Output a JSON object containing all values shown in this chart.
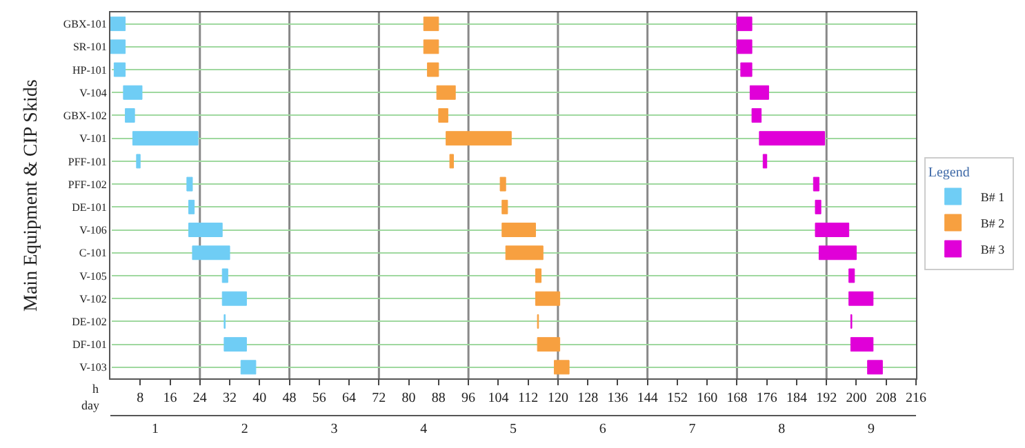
{
  "chart_data": {
    "type": "bar",
    "orientation": "horizontal",
    "categories": [
      "GBX-101",
      "SR-101",
      "HP-101",
      "V-104",
      "GBX-102",
      "V-101",
      "PFF-101",
      "PFF-102",
      "DE-101",
      "V-106",
      "C-101",
      "V-105",
      "V-102",
      "DE-102",
      "DF-101",
      "V-103"
    ],
    "series": [
      {
        "name": "B# 1",
        "color": "#6fcdf5",
        "base": [
          0,
          0,
          1,
          3.5,
          4,
          6,
          7,
          20.5,
          21,
          21,
          22,
          30,
          30,
          30.5,
          30.5,
          35
        ],
        "values": [
          4,
          4,
          3,
          5,
          2.5,
          17.5,
          1,
          1.5,
          1.5,
          9,
          10,
          1.5,
          6.5,
          0.3,
          6,
          4
        ]
      },
      {
        "name": "B# 2",
        "color": "#f7a040",
        "base": [
          84,
          84,
          85,
          87.5,
          88,
          90,
          91,
          104.5,
          105,
          105,
          106,
          114,
          114,
          114.5,
          114.5,
          119
        ],
        "values": [
          4,
          4,
          3,
          5,
          2.5,
          17.5,
          1,
          1.5,
          1.5,
          9,
          10,
          1.5,
          6.5,
          0.3,
          6,
          4
        ]
      },
      {
        "name": "B# 3",
        "color": "#e000d8",
        "base": [
          168,
          168,
          169,
          171.5,
          172,
          174,
          175,
          188.5,
          189,
          189,
          190,
          198,
          198,
          198.5,
          198.5,
          203
        ],
        "values": [
          4,
          4,
          3,
          5,
          2.5,
          17.5,
          1,
          1.5,
          1.5,
          9,
          10,
          1.5,
          6.5,
          0.3,
          6,
          4
        ]
      }
    ],
    "ylabel": "Main Equipment & CIP Skids",
    "xlabel": "h",
    "x2label": "day",
    "xlim": [
      0,
      216
    ],
    "xticks": [
      8,
      16,
      24,
      32,
      40,
      48,
      56,
      64,
      72,
      80,
      88,
      96,
      104,
      112,
      120,
      128,
      136,
      144,
      152,
      160,
      168,
      176,
      184,
      192,
      200,
      208,
      216
    ],
    "x2lim": [
      0.5,
      9.5
    ],
    "x2ticks": [
      1,
      2,
      3,
      4,
      5,
      6,
      7,
      8,
      9
    ],
    "ref_lines": [
      {
        "axis": "x",
        "value": 24,
        "color": "#888888"
      },
      {
        "axis": "x",
        "value": 48,
        "color": "#888888"
      },
      {
        "axis": "x",
        "value": 72,
        "color": "#888888"
      },
      {
        "axis": "x",
        "value": 96,
        "color": "#888888"
      },
      {
        "axis": "x",
        "value": 120,
        "color": "#888888"
      },
      {
        "axis": "x",
        "value": 144,
        "color": "#888888"
      },
      {
        "axis": "x",
        "value": 168,
        "color": "#888888"
      },
      {
        "axis": "x",
        "value": 192,
        "color": "#888888"
      }
    ],
    "grid": "y",
    "legend": "right",
    "legend_title": "Legend"
  }
}
